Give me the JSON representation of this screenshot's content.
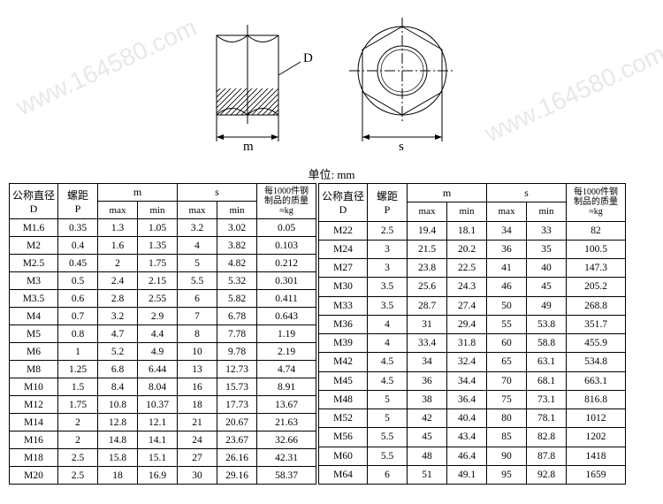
{
  "unit_label": "单位: mm",
  "diagram": {
    "m_label": "m",
    "s_label": "s",
    "d_label": "D",
    "stroke": "#000000",
    "hatch": "#000000"
  },
  "headers": {
    "d_top": "公称直径",
    "d_bot": "D",
    "p_top": "螺距",
    "p_bot": "P",
    "m": "m",
    "s": "s",
    "max": "max",
    "min": "min",
    "q_l1": "每1000件钢",
    "q_l2": "制品的质量",
    "q_l3": "≈kg"
  },
  "rows_left": [
    [
      "M1.6",
      "0.35",
      "1.3",
      "1.05",
      "3.2",
      "3.02",
      "0.05"
    ],
    [
      "M2",
      "0.4",
      "1.6",
      "1.35",
      "4",
      "3.82",
      "0.103"
    ],
    [
      "M2.5",
      "0.45",
      "2",
      "1.75",
      "5",
      "4.82",
      "0.212"
    ],
    [
      "M3",
      "0.5",
      "2.4",
      "2.15",
      "5.5",
      "5.32",
      "0.301"
    ],
    [
      "M3.5",
      "0.6",
      "2.8",
      "2.55",
      "6",
      "5.82",
      "0.411"
    ],
    [
      "M4",
      "0.7",
      "3.2",
      "2.9",
      "7",
      "6.78",
      "0.643"
    ],
    [
      "M5",
      "0.8",
      "4.7",
      "4.4",
      "8",
      "7.78",
      "1.19"
    ],
    [
      "M6",
      "1",
      "5.2",
      "4.9",
      "10",
      "9.78",
      "2.19"
    ],
    [
      "M8",
      "1.25",
      "6.8",
      "6.44",
      "13",
      "12.73",
      "4.74"
    ],
    [
      "M10",
      "1.5",
      "8.4",
      "8.04",
      "16",
      "15.73",
      "8.91"
    ],
    [
      "M12",
      "1.75",
      "10.8",
      "10.37",
      "18",
      "17.73",
      "13.67"
    ],
    [
      "M14",
      "2",
      "12.8",
      "12.1",
      "21",
      "20.67",
      "21.63"
    ],
    [
      "M16",
      "2",
      "14.8",
      "14.1",
      "24",
      "23.67",
      "32.66"
    ],
    [
      "M18",
      "2.5",
      "15.8",
      "15.1",
      "27",
      "26.16",
      "42.31"
    ],
    [
      "M20",
      "2.5",
      "18",
      "16.9",
      "30",
      "29.16",
      "58.37"
    ]
  ],
  "rows_right": [
    [
      "M22",
      "2.5",
      "19.4",
      "18.1",
      "34",
      "33",
      "82"
    ],
    [
      "M24",
      "3",
      "21.5",
      "20.2",
      "36",
      "35",
      "100.5"
    ],
    [
      "M27",
      "3",
      "23.8",
      "22.5",
      "41",
      "40",
      "147.3"
    ],
    [
      "M30",
      "3.5",
      "25.6",
      "24.3",
      "46",
      "45",
      "205.2"
    ],
    [
      "M33",
      "3.5",
      "28.7",
      "27.4",
      "50",
      "49",
      "268.8"
    ],
    [
      "M36",
      "4",
      "31",
      "29.4",
      "55",
      "53.8",
      "351.7"
    ],
    [
      "M39",
      "4",
      "33.4",
      "31.8",
      "60",
      "58.8",
      "455.9"
    ],
    [
      "M42",
      "4.5",
      "34",
      "32.4",
      "65",
      "63.1",
      "534.8"
    ],
    [
      "M45",
      "4.5",
      "36",
      "34.4",
      "70",
      "68.1",
      "663.1"
    ],
    [
      "M48",
      "5",
      "38",
      "36.4",
      "75",
      "73.1",
      "816.8"
    ],
    [
      "M52",
      "5",
      "42",
      "40.4",
      "80",
      "78.1",
      "1012"
    ],
    [
      "M56",
      "5.5",
      "45",
      "43.4",
      "85",
      "82.8",
      "1202"
    ],
    [
      "M60",
      "5.5",
      "48",
      "46.4",
      "90",
      "87.8",
      "1418"
    ],
    [
      "M64",
      "6",
      "51",
      "49.1",
      "95",
      "92.8",
      "1659"
    ]
  ],
  "watermark_text": "www.164580.com"
}
